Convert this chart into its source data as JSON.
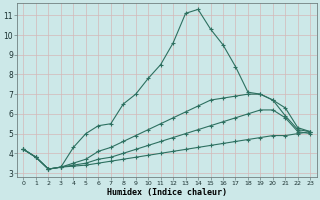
{
  "xlabel": "Humidex (Indice chaleur)",
  "background_color": "#cce8e8",
  "grid_color": "#d4b8b8",
  "line_color": "#2d7060",
  "xlim": [
    -0.5,
    23.5
  ],
  "ylim": [
    2.8,
    11.6
  ],
  "yticks": [
    3,
    4,
    5,
    6,
    7,
    8,
    9,
    10,
    11
  ],
  "xticks": [
    0,
    1,
    2,
    3,
    4,
    5,
    6,
    7,
    8,
    9,
    10,
    11,
    12,
    13,
    14,
    15,
    16,
    17,
    18,
    19,
    20,
    21,
    22,
    23
  ],
  "line1_y": [
    4.2,
    3.8,
    3.2,
    3.3,
    4.3,
    5.0,
    5.4,
    5.5,
    6.5,
    7.0,
    7.8,
    8.5,
    9.6,
    11.1,
    11.3,
    10.3,
    9.5,
    8.4,
    7.1,
    7.0,
    6.7,
    5.9,
    5.2,
    5.1
  ],
  "line2_y": [
    4.2,
    3.8,
    3.2,
    3.3,
    3.5,
    3.7,
    4.1,
    4.3,
    4.6,
    4.9,
    5.2,
    5.5,
    5.8,
    6.1,
    6.4,
    6.7,
    6.8,
    6.9,
    7.0,
    7.0,
    6.7,
    6.3,
    5.3,
    5.1
  ],
  "line3_y": [
    4.2,
    3.8,
    3.2,
    3.3,
    3.4,
    3.5,
    3.7,
    3.8,
    4.0,
    4.2,
    4.4,
    4.6,
    4.8,
    5.0,
    5.2,
    5.4,
    5.6,
    5.8,
    6.0,
    6.2,
    6.2,
    5.8,
    5.1,
    5.0
  ],
  "line4_y": [
    4.2,
    3.8,
    3.2,
    3.3,
    3.35,
    3.4,
    3.5,
    3.6,
    3.7,
    3.8,
    3.9,
    4.0,
    4.1,
    4.2,
    4.3,
    4.4,
    4.5,
    4.6,
    4.7,
    4.8,
    4.9,
    4.9,
    5.0,
    5.1
  ]
}
